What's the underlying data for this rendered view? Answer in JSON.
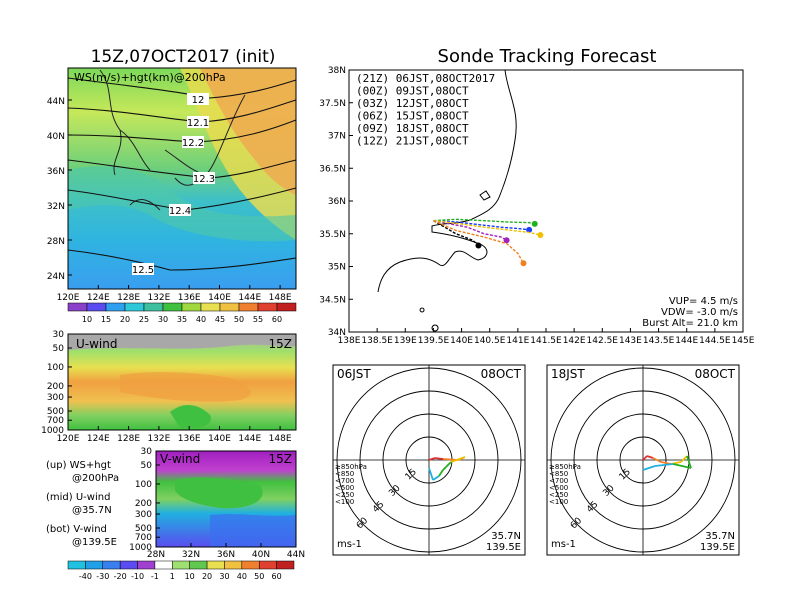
{
  "left": {
    "title": "15Z,07OCT2017 (init)",
    "map_label": "WS(m/s)+hgt(km)@200hPa",
    "contour_labels": [
      "12",
      "12.1",
      "12.2",
      "12.3",
      "12.4",
      "12.5"
    ],
    "lat_ticks": [
      "44N",
      "40N",
      "36N",
      "32N",
      "28N",
      "24N"
    ],
    "lon_ticks": [
      "120E",
      "124E",
      "128E",
      "132E",
      "136E",
      "140E",
      "144E",
      "148E"
    ],
    "ws_colorbar": [
      "10",
      "15",
      "20",
      "25",
      "30",
      "35",
      "40",
      "45",
      "50",
      "55",
      "60"
    ],
    "uwind": {
      "label": "U-wind",
      "time": "15Z",
      "p_ticks": [
        "30",
        "50",
        "100",
        "200",
        "300",
        "500",
        "700",
        "1000"
      ]
    },
    "vwind": {
      "label": "V-wind",
      "time": "15Z",
      "p_ticks": [
        "30",
        "50",
        "100",
        "200",
        "300",
        "500",
        "700",
        "1000"
      ],
      "lat_ticks": [
        "28N",
        "32N",
        "36N",
        "40N",
        "44N"
      ]
    },
    "legend": [
      {
        "a": "(up) WS+hgt",
        "b": "@200hPa"
      },
      {
        "a": "(mid) U-wind",
        "b": "@35.7N"
      },
      {
        "a": "(bot) V-wind",
        "b": "@139.5E"
      }
    ],
    "wind_colorbar": [
      "-40",
      "-30",
      "-20",
      "-10",
      "-1",
      "1",
      "10",
      "20",
      "30",
      "40",
      "50",
      "60"
    ]
  },
  "forecast": {
    "title": "Sonde Tracking Forecast",
    "lat_ticks": [
      "38N",
      "37.5N",
      "37N",
      "36.5N",
      "36N",
      "35.5N",
      "35N",
      "34.5N",
      "34N"
    ],
    "lon_ticks": [
      "138E",
      "138.5E",
      "139E",
      "139.5E",
      "140E",
      "140.5E",
      "141E",
      "141.5E",
      "142E",
      "142.5E",
      "143E",
      "143.5E",
      "144E",
      "144.5E",
      "145E"
    ],
    "launches": [
      {
        "text": "(21Z)  06JST,08OCT2017",
        "color": "#000000"
      },
      {
        "text": "(00Z)  09JST,08OCT",
        "color": "#a020c0"
      },
      {
        "text": "(03Z)  12JST,08OCT",
        "color": "#1a3cff"
      },
      {
        "text": "(06Z)  15JST,08OCT",
        "color": "#20b020"
      },
      {
        "text": "(09Z)  18JST,08OCT",
        "color": "#f0c000"
      },
      {
        "text": "(12Z)  21JST,08OCT",
        "color": "#f08020"
      }
    ],
    "params": [
      "VUP=  4.5 m/s",
      "VDW= -3.0 m/s",
      "Burst Alt=  21.0 km"
    ]
  },
  "hodo": [
    {
      "left": "06JST",
      "right": "08OCT",
      "lat": "35.7N",
      "lon": "139.5E",
      "unit": "ms-1"
    },
    {
      "left": "18JST",
      "right": "08OCT",
      "lat": "35.7N",
      "lon": "139.5E",
      "unit": "ms-1"
    }
  ],
  "hodo_rings": [
    "15",
    "30",
    "45",
    "60"
  ],
  "hodo_levels": [
    {
      "text": "≥850hPa",
      "color": "#e03030"
    },
    {
      "text": "<850",
      "color": "#f08020"
    },
    {
      "text": "<700",
      "color": "#f0c000"
    },
    {
      "text": "<500",
      "color": "#20b020"
    },
    {
      "text": "<250",
      "color": "#20b0e0"
    },
    {
      "text": "<100",
      "color": "#1a3cff"
    }
  ],
  "chart_data": [
    {
      "type": "heatmap",
      "title": "15Z,07OCT2017 (init)",
      "label": "WS(m/s)+hgt(km)@200hPa",
      "x_range": [
        "120E",
        "150E"
      ],
      "y_range": [
        "22N",
        "48N"
      ],
      "contours_km": [
        12,
        12.1,
        12.2,
        12.3,
        12.4,
        12.5
      ],
      "colorbar": [
        10,
        15,
        20,
        25,
        30,
        35,
        40,
        45,
        50,
        55,
        60
      ]
    },
    {
      "type": "heatmap",
      "label": "U-wind",
      "time": "15Z",
      "x_range": [
        "120E",
        "150E"
      ],
      "y_range_hPa": [
        1000,
        30
      ]
    },
    {
      "type": "heatmap",
      "label": "V-wind",
      "time": "15Z",
      "x_range": [
        "28N",
        "44N"
      ],
      "y_range_hPa": [
        1000,
        30
      ],
      "colorbar": [
        -40,
        -30,
        -20,
        -10,
        -1,
        1,
        10,
        20,
        30,
        40,
        50,
        60
      ]
    },
    {
      "type": "line",
      "title": "Sonde Tracking Forecast",
      "x_range": [
        138,
        145
      ],
      "y_range": [
        34,
        38
      ],
      "series": [
        {
          "name": "(21Z)  06JST,08OCT2017",
          "x": [
            139.5,
            139.7,
            139.9,
            140.05,
            140.2,
            140.3
          ],
          "y": [
            35.7,
            35.6,
            35.5,
            35.45,
            35.4,
            35.32
          ]
        },
        {
          "name": "(00Z)  09JST,08OCT",
          "x": [
            139.5,
            139.8,
            140.1,
            140.4,
            140.7,
            140.8
          ],
          "y": [
            35.7,
            35.65,
            35.6,
            35.5,
            35.45,
            35.4
          ]
        },
        {
          "name": "(03Z)  12JST,08OCT",
          "x": [
            139.5,
            139.9,
            140.3,
            140.7,
            141.0,
            141.2
          ],
          "y": [
            35.7,
            35.68,
            35.64,
            35.6,
            35.58,
            35.56
          ]
        },
        {
          "name": "(06Z)  15JST,08OCT",
          "x": [
            139.5,
            139.9,
            140.4,
            140.8,
            141.2,
            141.3
          ],
          "y": [
            35.7,
            35.72,
            35.7,
            35.68,
            35.67,
            35.65
          ]
        },
        {
          "name": "(09Z)  18JST,08OCT",
          "x": [
            139.5,
            139.9,
            140.4,
            140.8,
            141.2,
            141.4
          ],
          "y": [
            35.7,
            35.66,
            35.6,
            35.56,
            35.52,
            35.48
          ]
        },
        {
          "name": "(12Z)  21JST,08OCT",
          "x": [
            139.5,
            139.9,
            140.4,
            140.8,
            141.0,
            141.1
          ],
          "y": [
            35.7,
            35.55,
            35.45,
            35.35,
            35.2,
            35.05
          ]
        }
      ]
    }
  ]
}
